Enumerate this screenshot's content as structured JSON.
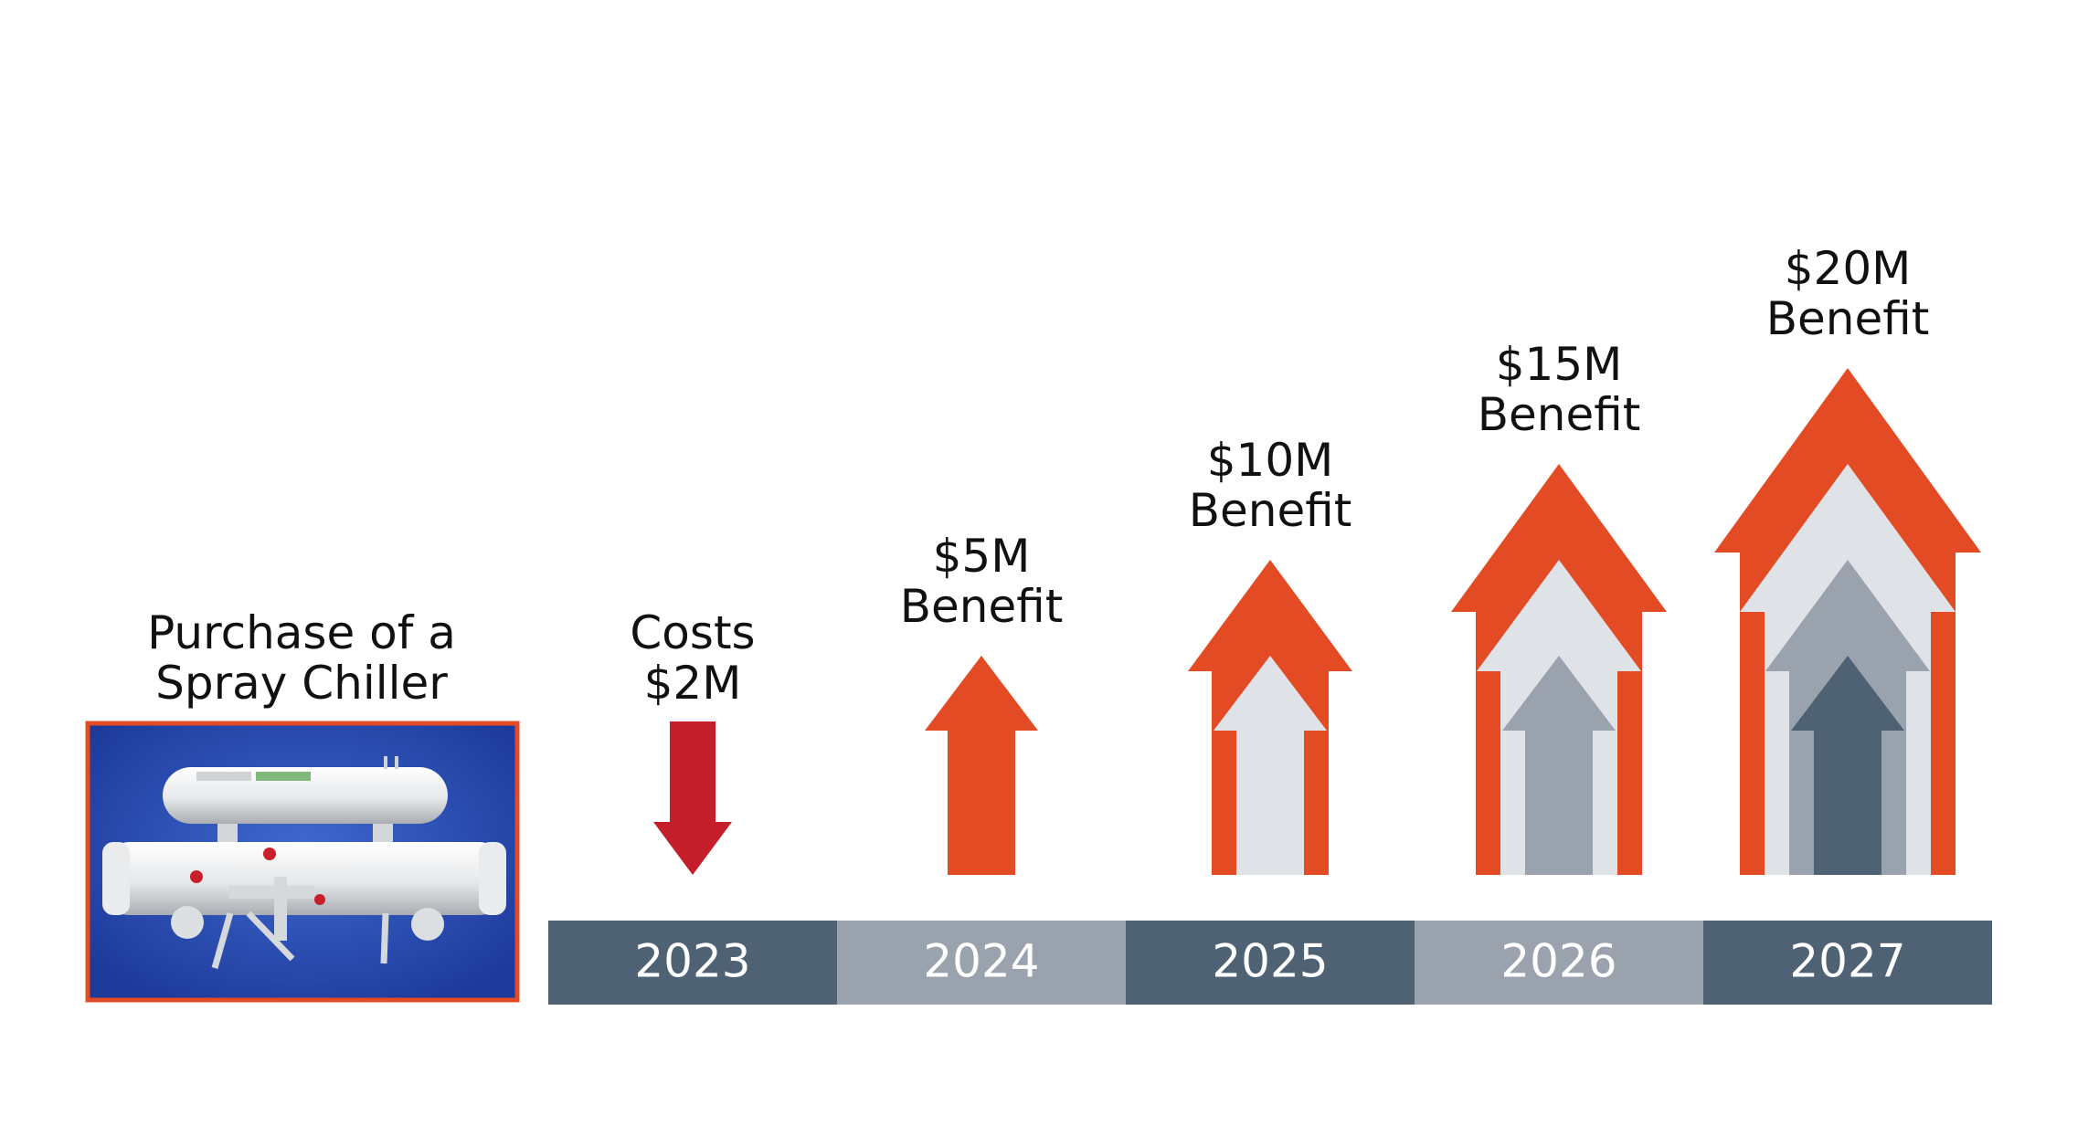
{
  "purchase": {
    "title_line1": "Purchase of a",
    "title_line2": "Spray Chiller"
  },
  "steps": [
    {
      "year": "2023",
      "line1": "Costs",
      "line2": "$2M",
      "kind": "cost",
      "amount_musd": 2
    },
    {
      "year": "2024",
      "line1": "$5M",
      "line2": "Benefit",
      "kind": "benefit",
      "amount_musd": 5
    },
    {
      "year": "2025",
      "line1": "$10M",
      "line2": "Benefit",
      "kind": "benefit",
      "amount_musd": 10
    },
    {
      "year": "2026",
      "line1": "$15M",
      "line2": "Benefit",
      "kind": "benefit",
      "amount_musd": 15
    },
    {
      "year": "2027",
      "line1": "$20M",
      "line2": "Benefit",
      "kind": "benefit",
      "amount_musd": 20
    }
  ],
  "colors": {
    "benefit_orange": "#e34b24",
    "cost_red": "#c41e2a",
    "light_gray": "#dfe3e7",
    "mid_gray": "#9aa2ad",
    "dark_slate": "#4e6274",
    "year_dark": "#4e6274",
    "year_light": "#9aa2ad",
    "photo_border": "#e34b24",
    "photo_bg": "#2d4fb0"
  },
  "icons": {
    "cost": "down-arrow-icon",
    "benefit": "up-arrow-icon"
  }
}
